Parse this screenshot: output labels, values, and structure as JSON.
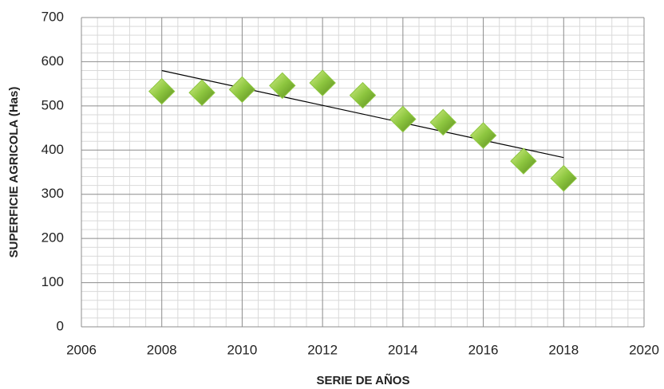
{
  "chart_data": {
    "type": "scatter",
    "x_label": "SERIE DE AÑOS",
    "y_label": "SUPERFICIE AGRICOLA (Has)",
    "series": [
      {
        "name": "Superficie",
        "color": "#8dc63f",
        "x": [
          2008,
          2009,
          2010,
          2011,
          2012,
          2013,
          2014,
          2015,
          2016,
          2017,
          2018
        ],
        "values": [
          533,
          530,
          537,
          546,
          552,
          524,
          470,
          463,
          433,
          375,
          336
        ]
      }
    ],
    "trendline": {
      "x": [
        2008,
        2018
      ],
      "values": [
        580,
        383
      ],
      "color": "#000000"
    },
    "xlim": [
      2006,
      2020
    ],
    "xticks": [
      2006,
      2008,
      2010,
      2012,
      2014,
      2016,
      2018,
      2020
    ],
    "ylim": [
      0,
      700
    ],
    "yticks": [
      0,
      100,
      200,
      300,
      400,
      500,
      600,
      700
    ],
    "grid": true
  }
}
